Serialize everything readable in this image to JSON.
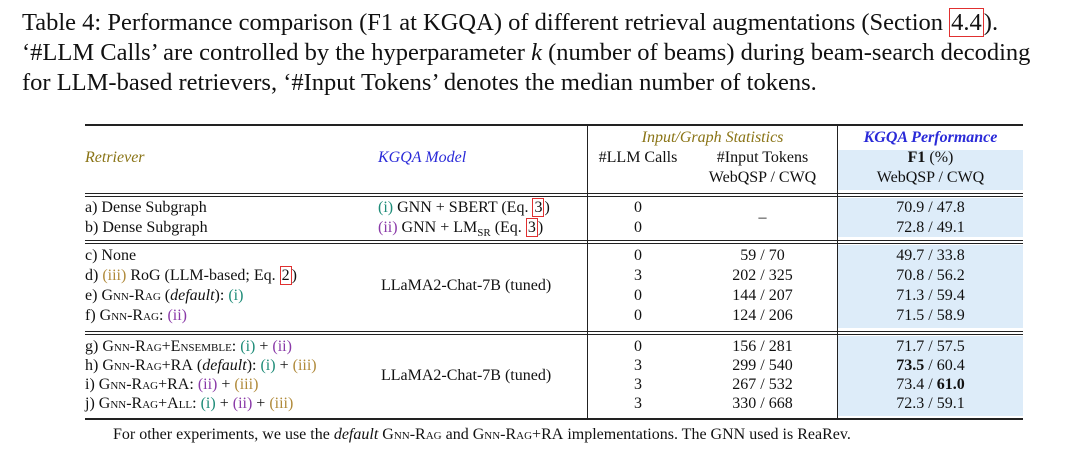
{
  "caption": {
    "line1_pre": "Table 4: Performance comparison (F1 at KGQA) of different retrieval augmentations (Section ",
    "line1_ref": "4.4",
    "line1_post": ").",
    "line2_pre": "‘#LLM Calls’ are controlled by the hyperparameter ",
    "line2_var": "k",
    "line2_post": " (number of beams) during beam-search decoding",
    "line3": "for LLM-based retrievers, ‘#Input Tokens’ denotes the median number of tokens."
  },
  "header": {
    "retriever": "Retriever",
    "kgqa_model": "KGQA Model",
    "group_stats": "Input/Graph Statistics",
    "group_perf": "KGQA Performance",
    "llm_calls": "#LLM Calls",
    "input_tokens": "#Input Tokens",
    "input_tokens_sub": "WebQSP / CWQ",
    "f1": "F1",
    "f1_unit": "(%)",
    "f1_sub": "WebQSP / CWQ"
  },
  "rows": {
    "a": {
      "retriever": "a) Dense Subgraph",
      "calls": "0",
      "f1": "70.9 / 47.8"
    },
    "b": {
      "retriever": "b) Dense Subgraph",
      "calls": "0",
      "f1": "72.8 / 49.1"
    },
    "ab_tokens": "–",
    "ab_model_1": {
      "tag": "(i)",
      "text": " GNN + SBERT (Eq. ",
      "ref": "3",
      "close": ")"
    },
    "ab_model_2": {
      "tag": "(ii)",
      "text_pre": " GNN + LM",
      "sub": "SR",
      "text": " (Eq. ",
      "ref": "3",
      "close": ")"
    },
    "c": {
      "retriever": "c) None",
      "calls": "0",
      "tokens": "59 / 70",
      "f1": "49.7 / 33.8"
    },
    "d": {
      "pre": "d) ",
      "tag": "(iii)",
      "text": " RoG (LLM-based; Eq. ",
      "ref": "2",
      "close": ")",
      "calls": "3",
      "tokens": "202 / 325",
      "f1": "70.8 / 56.2"
    },
    "e": {
      "pre": "e) ",
      "name": "Gnn-Rag",
      "mid": " (",
      "def": "default",
      "post": "): ",
      "tag": "(i)",
      "calls": "0",
      "tokens": "144 / 207",
      "f1": "71.3 / 59.4"
    },
    "f": {
      "pre": "f) ",
      "name": "Gnn-Rag",
      "post": ": ",
      "tag": "(ii)",
      "calls": "0",
      "tokens": "124 / 206",
      "f1": "71.5 / 58.9"
    },
    "cf_model": "LLaMA2-Chat-7B (tuned)",
    "g": {
      "pre": "g) ",
      "name": "Gnn-Rag+Ensemble",
      "post": ": ",
      "tag1": "(i)",
      "plus": " + ",
      "tag2": "(ii)",
      "calls": "0",
      "tokens": "156 / 281",
      "f1": "71.7 / 57.5"
    },
    "h": {
      "pre": "h) ",
      "name": "Gnn-Rag+RA",
      "mid": " (",
      "def": "default",
      "post": "): ",
      "tag1": "(i)",
      "plus": " + ",
      "tag2": "(iii)",
      "calls": "3",
      "tokens": "299 / 540",
      "f1_bold": "73.5",
      "f1_rest": " / 60.4"
    },
    "i": {
      "pre": "i) ",
      "name": "Gnn-Rag+RA",
      "post": ": ",
      "tag1": "(ii)",
      "plus": " + ",
      "tag2": "(iii)",
      "calls": "3",
      "tokens": "267 / 532",
      "f1_pre": "73.4 / ",
      "f1_bold": "61.0"
    },
    "j": {
      "pre": "j) ",
      "name": "Gnn-Rag+All",
      "post": ": ",
      "tag1": "(i)",
      "plus1": " + ",
      "tag2": "(ii)",
      "plus2": " + ",
      "tag3": "(iii)",
      "calls": "3",
      "tokens": "330 / 668",
      "f1": "72.3 / 59.1"
    },
    "gj_model": "LLaMA2-Chat-7B (tuned)"
  },
  "footnote": {
    "p1": "For other experiments, we use the ",
    "def": "default",
    "sp": " ",
    "n1": "Gnn-Rag",
    "and": " and ",
    "n2": "Gnn-Rag+RA",
    "p2": " implementations. The GNN used is ReaRev."
  },
  "colors": {
    "shade": "#ddecf9",
    "olive": "#8a7416",
    "blue": "#2a2ad8",
    "teal": "#1e8c78",
    "purple": "#8a3aa8",
    "tan": "#b08a3a",
    "ref_box": "#e03030"
  }
}
